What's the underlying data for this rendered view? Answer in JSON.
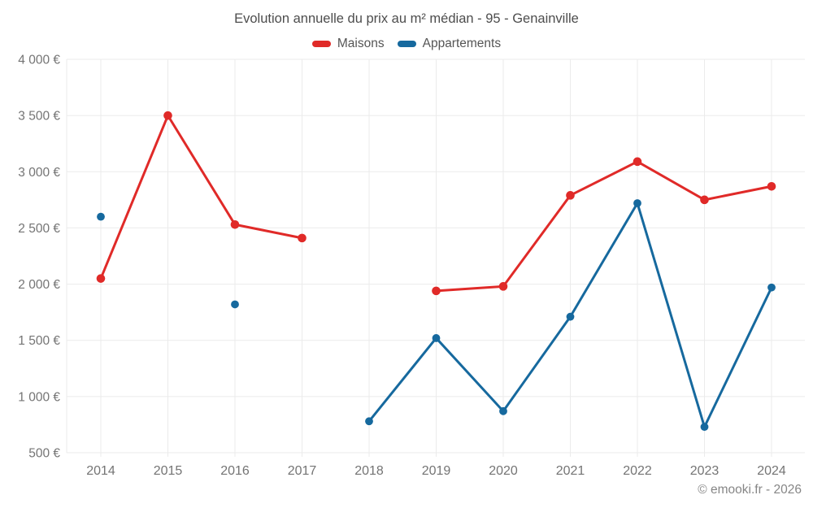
{
  "chart": {
    "title": "Evolution annuelle du prix au m² médian - 95 - Genainville"
  },
  "legend": {
    "maisons": "Maisons",
    "appartements": "Appartements"
  },
  "footer": {
    "credit": "© emooki.fr - 2026"
  },
  "colors": {
    "maisons": "#e02a28",
    "appartements": "#16699e",
    "grid": "#ebebeb",
    "axis_text": "#747474",
    "title_text": "#4d4d4d"
  },
  "chart_data": {
    "type": "line",
    "title": "Evolution annuelle du prix au m² médian - 95 - Genainville",
    "xlabel": "",
    "ylabel": "",
    "categories": [
      "2014",
      "2015",
      "2016",
      "2017",
      "2018",
      "2019",
      "2020",
      "2021",
      "2022",
      "2023",
      "2024"
    ],
    "series": [
      {
        "name": "Maisons",
        "color_key": "maisons",
        "values": [
          2050,
          3500,
          2530,
          2410,
          null,
          1940,
          1980,
          2790,
          3090,
          2750,
          2870
        ]
      },
      {
        "name": "Appartements",
        "color_key": "appartements",
        "values": [
          2600,
          null,
          1820,
          null,
          780,
          1520,
          870,
          1710,
          2720,
          730,
          1970
        ]
      }
    ],
    "ylim": [
      500,
      4000
    ],
    "y_ticks": [
      500,
      1000,
      1500,
      2000,
      2500,
      3000,
      3500,
      4000
    ],
    "y_tick_labels": [
      "500 €",
      "1 000 €",
      "1 500 €",
      "2 000 €",
      "2 500 €",
      "3 000 €",
      "3 500 €",
      "4 000 €"
    ],
    "grid": true,
    "legend_position": "top",
    "unit": "€/m²"
  }
}
